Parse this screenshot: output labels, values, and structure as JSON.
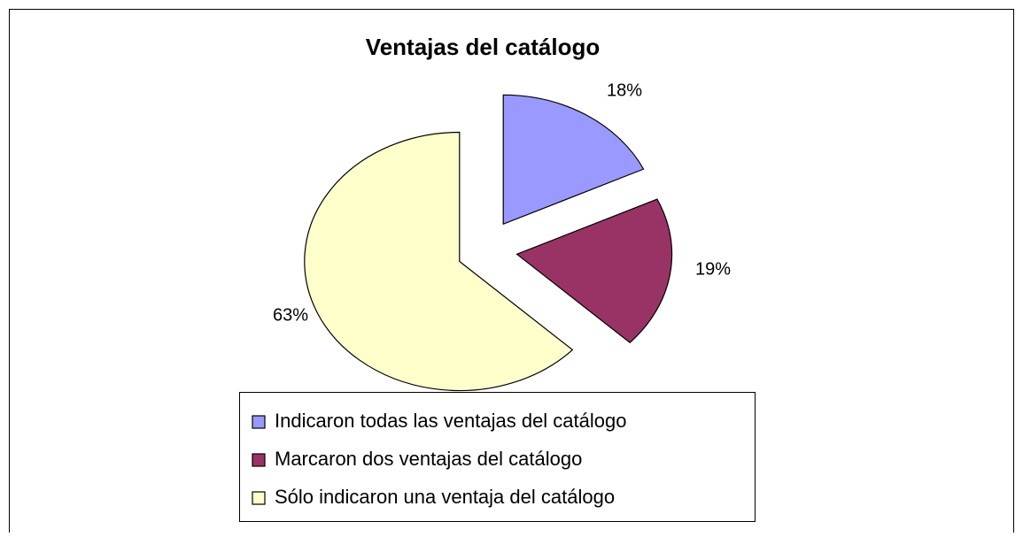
{
  "chart_data": {
    "type": "pie",
    "title": "Ventajas del catálogo",
    "categories": [
      "Indicaron todas las ventajas del catálogo",
      "Marcaron dos ventajas del catálogo",
      "Sólo indicaron una ventaja del catálogo"
    ],
    "values": [
      18,
      19,
      63
    ],
    "value_labels": [
      "18%",
      "19%",
      "63%"
    ],
    "colors": [
      "#9999ff",
      "#993366",
      "#ffffcc"
    ],
    "legend": "bottom"
  }
}
